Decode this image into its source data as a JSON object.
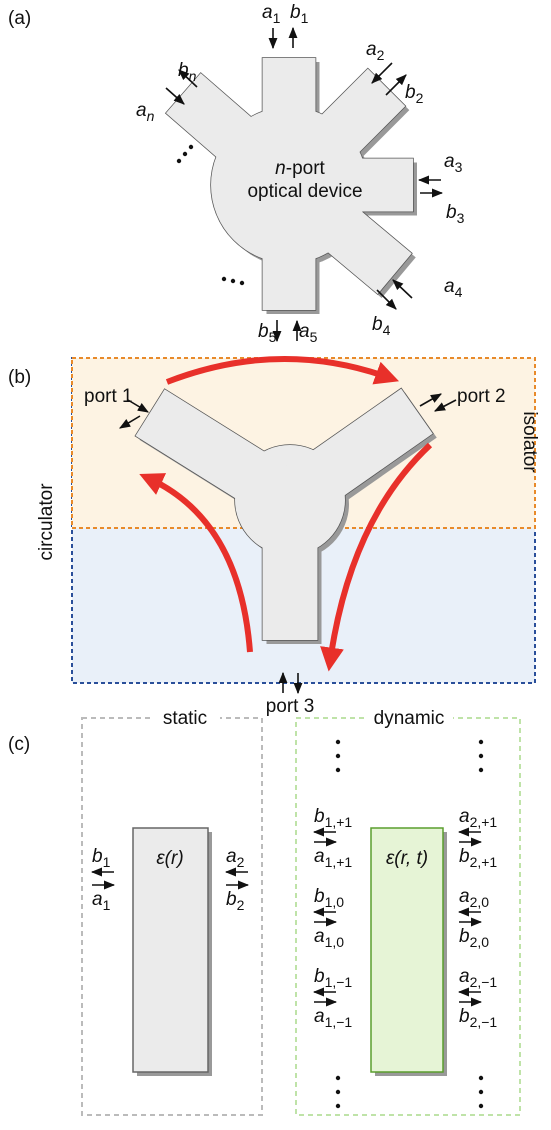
{
  "panel_a": {
    "label": "(a)",
    "device": {
      "var": "n",
      "line1": "-port",
      "line2": "optical device"
    },
    "ports": [
      {
        "symbol": "a",
        "sub": "1"
      },
      {
        "symbol": "b",
        "sub": "1"
      },
      {
        "symbol": "a",
        "sub": "2"
      },
      {
        "symbol": "b",
        "sub": "2"
      },
      {
        "symbol": "a",
        "sub": "3"
      },
      {
        "symbol": "b",
        "sub": "3"
      },
      {
        "symbol": "a",
        "sub": "4"
      },
      {
        "symbol": "b",
        "sub": "4"
      },
      {
        "symbol": "a",
        "sub": "5"
      },
      {
        "symbol": "b",
        "sub": "5"
      },
      {
        "symbol": "a",
        "sub": "n"
      },
      {
        "symbol": "b",
        "sub": "n"
      }
    ]
  },
  "panel_b": {
    "label": "(b)",
    "ports": [
      "port 1",
      "port 2",
      "port 3"
    ],
    "left_label": "circulator",
    "right_label": "isolator"
  },
  "panel_c": {
    "label": "(c)",
    "static": {
      "title": "static",
      "permittivity": "ε(r)",
      "left": [
        {
          "symbol": "b",
          "sub": "1"
        },
        {
          "symbol": "a",
          "sub": "1"
        }
      ],
      "right": [
        {
          "symbol": "a",
          "sub": "2"
        },
        {
          "symbol": "b",
          "sub": "2"
        }
      ]
    },
    "dynamic": {
      "title": "dynamic",
      "permittivity": "ε(r, t)",
      "left": [
        {
          "symbol": "b",
          "sub": "1,+1"
        },
        {
          "symbol": "a",
          "sub": "1,+1"
        },
        {
          "symbol": "b",
          "sub": "1,0"
        },
        {
          "symbol": "a",
          "sub": "1,0"
        },
        {
          "symbol": "b",
          "sub": "1,−1"
        },
        {
          "symbol": "a",
          "sub": "1,−1"
        }
      ],
      "right": [
        {
          "symbol": "a",
          "sub": "2,+1"
        },
        {
          "symbol": "b",
          "sub": "2,+1"
        },
        {
          "symbol": "a",
          "sub": "2,0"
        },
        {
          "symbol": "b",
          "sub": "2,0"
        },
        {
          "symbol": "a",
          "sub": "2,−1"
        },
        {
          "symbol": "b",
          "sub": "2,−1"
        }
      ]
    }
  }
}
